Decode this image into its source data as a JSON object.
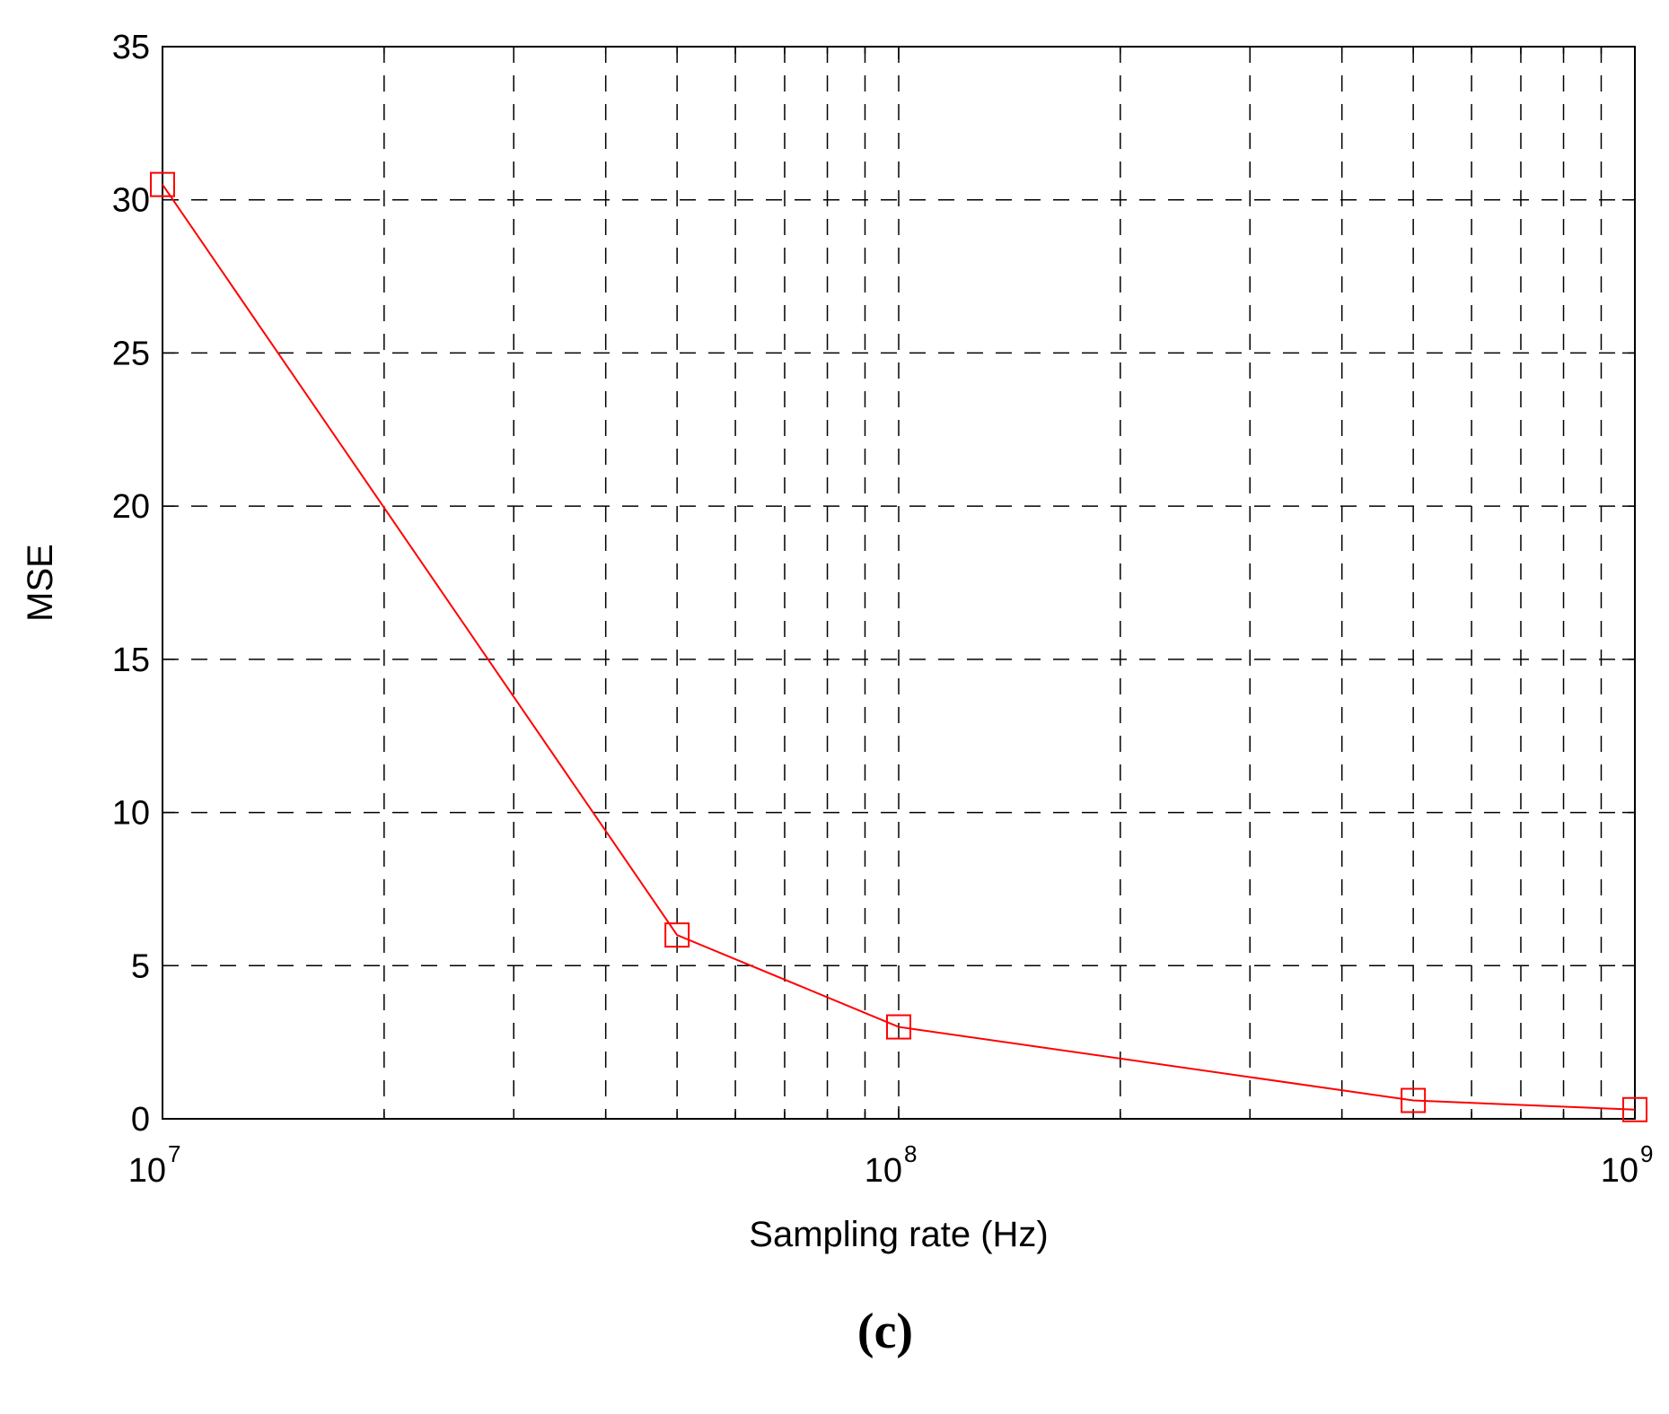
{
  "panel_label": "(c)",
  "chart_data": {
    "type": "line",
    "title": "",
    "xlabel": "Sampling rate (Hz)",
    "ylabel": "MSE",
    "xscale": "log",
    "xlim": [
      10000000,
      1000000000
    ],
    "ylim": [
      0,
      35
    ],
    "xticks": [
      {
        "value": 10000000,
        "base": "10",
        "exp": "7"
      },
      {
        "value": 100000000,
        "base": "10",
        "exp": "8"
      },
      {
        "value": 1000000000,
        "base": "10",
        "exp": "9"
      }
    ],
    "yticks": [
      0,
      5,
      10,
      15,
      20,
      25,
      30,
      35
    ],
    "grid": true,
    "grid_style": "dashed",
    "marker": "square",
    "series": [
      {
        "color": "#ff0000",
        "x": [
          10000000,
          50000000,
          100000000,
          500000000,
          1000000000
        ],
        "y": [
          30.5,
          6.0,
          3.0,
          0.6,
          0.3
        ]
      }
    ]
  }
}
